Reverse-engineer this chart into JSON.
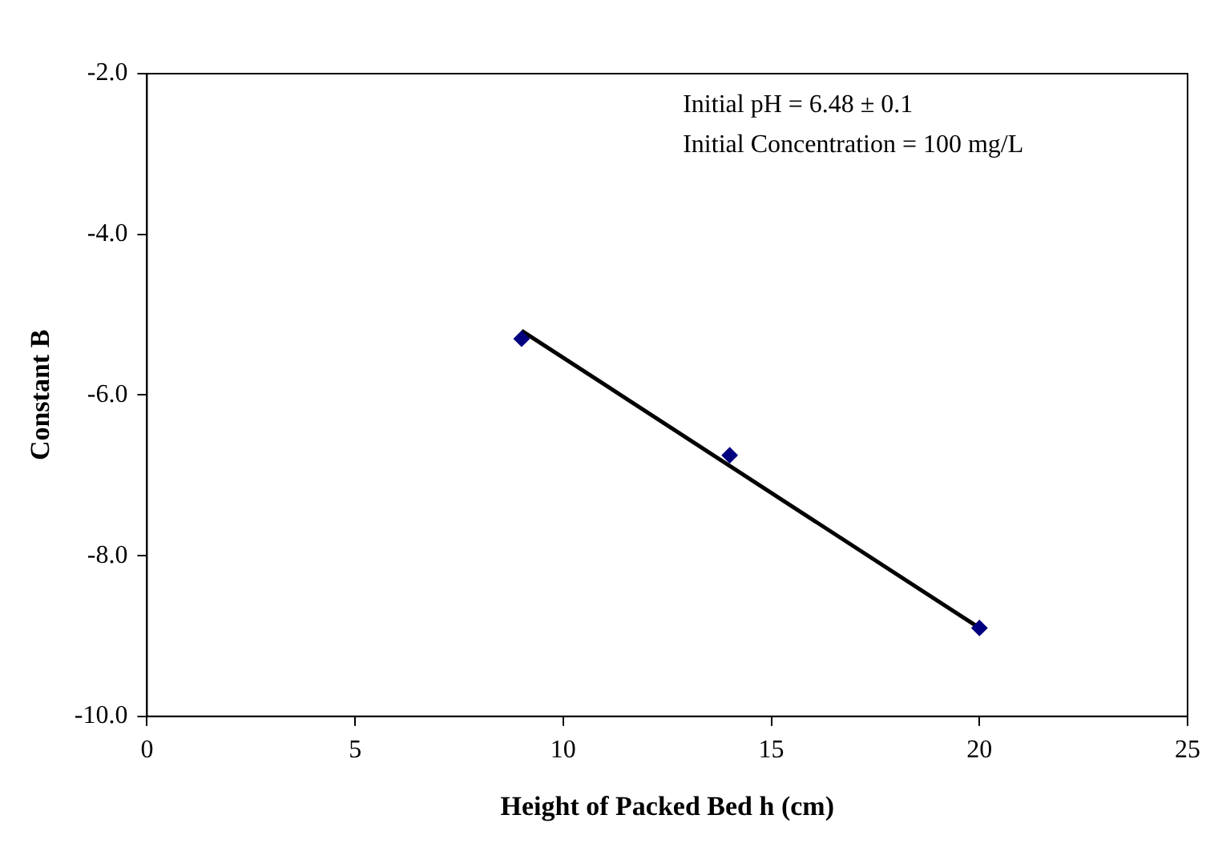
{
  "chart_data": {
    "type": "scatter",
    "xlabel": "Height of Packed Bed h (cm)",
    "ylabel": "Constant B",
    "annotations": [
      "Initial pH = 6.48 ± 0.1",
      "Initial Concentration = 100 mg/L"
    ],
    "series": [
      {
        "color": "#000080",
        "x": [
          9,
          14,
          20
        ],
        "values": [
          -5.3,
          -6.75,
          -8.9
        ],
        "marker": "diamond"
      },
      {
        "type": "line",
        "color": "#000000",
        "x": [
          9,
          20
        ],
        "values": [
          -5.2,
          -8.9
        ],
        "marker": "none",
        "line_style": "solid"
      }
    ],
    "xlim": [
      0,
      25
    ],
    "xticks": [
      0,
      5,
      10,
      15,
      20,
      25
    ],
    "ylim": [
      -10,
      -2
    ],
    "yticks": [
      {
        "value": -10,
        "label": "-10.0"
      },
      {
        "value": -8,
        "label": "-8.0"
      },
      {
        "value": -6,
        "label": "-6.0"
      },
      {
        "value": -4,
        "label": "-4.0"
      },
      {
        "value": -2,
        "label": "-2.0"
      }
    ],
    "grid": false,
    "legend": false
  }
}
